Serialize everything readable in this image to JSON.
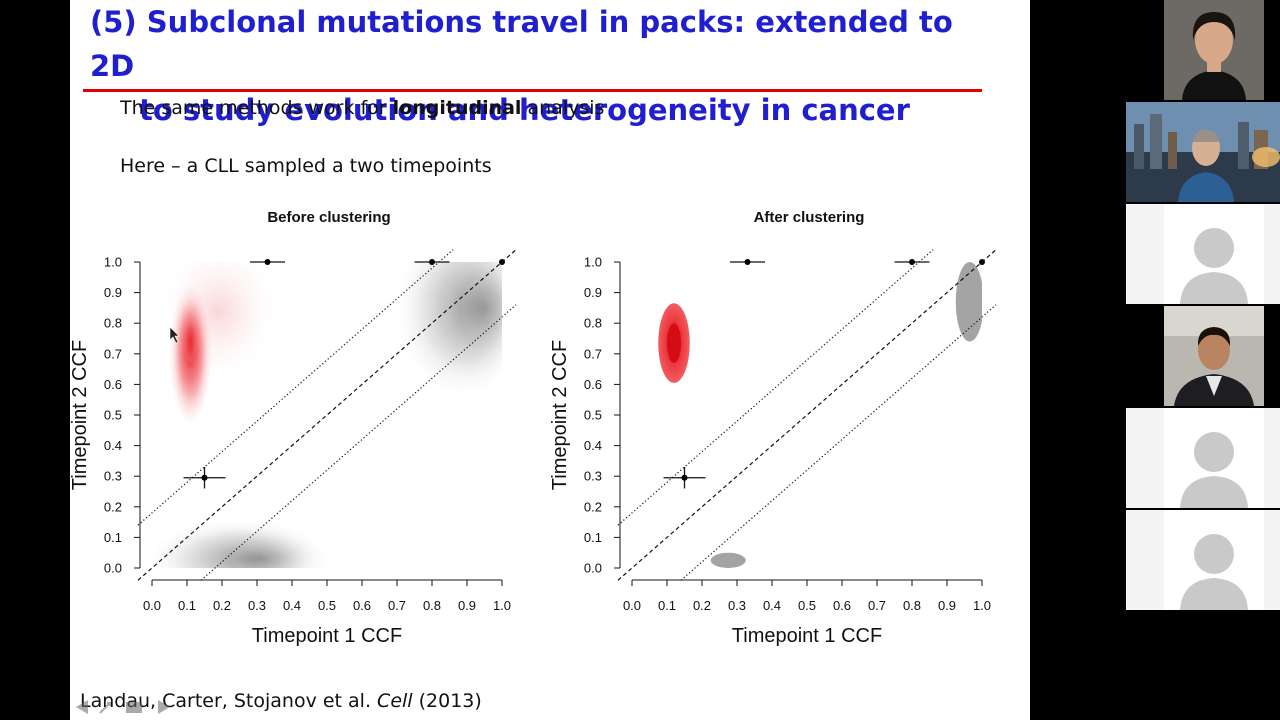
{
  "slide": {
    "title_line1": "(5) Subclonal mutations travel in packs: extended to 2D",
    "title_line2": "to study evolution and heterogeneity in cancer",
    "intro_prefix": "The same methods work for ",
    "intro_bold": "longitudinal",
    "intro_suffix": " analysis",
    "subtitle": "Here – a CLL sampled a two timepoints",
    "citation_authors": "Landau, Carter, Stojanov et al. ",
    "citation_journal": "Cell",
    "citation_year": " (2013)"
  },
  "chart_data": [
    {
      "type": "scatter",
      "title": "Before clustering",
      "xlabel": "Timepoint 1 CCF",
      "ylabel": "Timepoint 2 CCF",
      "xlim": [
        0,
        1
      ],
      "ylim": [
        0,
        1
      ],
      "xticks": [
        "0.0",
        "0.1",
        "0.2",
        "0.3",
        "0.4",
        "0.5",
        "0.6",
        "0.7",
        "0.8",
        "0.9",
        "1.0"
      ],
      "yticks": [
        "0.0",
        "0.1",
        "0.2",
        "0.3",
        "0.4",
        "0.5",
        "0.6",
        "0.7",
        "0.8",
        "0.9",
        "1.0"
      ],
      "points": [
        {
          "x": 0.33,
          "y": 1.0,
          "xerr_low": 0.28,
          "xerr_high": 0.38
        },
        {
          "x": 0.8,
          "y": 1.0,
          "xerr_low": 0.75,
          "xerr_high": 0.85
        },
        {
          "x": 1.0,
          "y": 1.0
        },
        {
          "x": 0.15,
          "y": 0.295,
          "xerr_low": 0.09,
          "xerr_high": 0.21,
          "yerr_low": 0.26,
          "yerr_high": 0.33
        }
      ],
      "reference_lines": [
        {
          "style": "dashed",
          "slope": 1,
          "intercept": 0
        },
        {
          "style": "dotted",
          "slope": 1,
          "intercept": 0.18
        },
        {
          "style": "dotted",
          "slope": 1,
          "intercept": -0.18
        }
      ],
      "densities": [
        {
          "color": "#e8262b",
          "cx": 0.11,
          "cy": 0.72,
          "sx": 0.045,
          "sy": 0.17
        },
        {
          "color": "#888888",
          "cx": 0.92,
          "cy": 0.85,
          "sx": 0.12,
          "sy": 0.18
        },
        {
          "color": "#888888",
          "cx": 0.28,
          "cy": 0.03,
          "sx": 0.16,
          "sy": 0.08
        }
      ]
    },
    {
      "type": "scatter",
      "title": "After clustering",
      "xlabel": "Timepoint 1 CCF",
      "ylabel": "Timepoint 2 CCF",
      "xlim": [
        0,
        1
      ],
      "ylim": [
        0,
        1
      ],
      "xticks": [
        "0.0",
        "0.1",
        "0.2",
        "0.3",
        "0.4",
        "0.5",
        "0.6",
        "0.7",
        "0.8",
        "0.9",
        "1.0"
      ],
      "yticks": [
        "0.0",
        "0.1",
        "0.2",
        "0.3",
        "0.4",
        "0.5",
        "0.6",
        "0.7",
        "0.8",
        "0.9",
        "1.0"
      ],
      "points": [
        {
          "x": 0.33,
          "y": 1.0,
          "xerr_low": 0.28,
          "xerr_high": 0.38
        },
        {
          "x": 0.8,
          "y": 1.0,
          "xerr_low": 0.75,
          "xerr_high": 0.85
        },
        {
          "x": 1.0,
          "y": 1.0
        },
        {
          "x": 0.15,
          "y": 0.295,
          "xerr_low": 0.09,
          "xerr_high": 0.21,
          "yerr_low": 0.26,
          "yerr_high": 0.33
        }
      ],
      "reference_lines": [
        {
          "style": "dashed",
          "slope": 1,
          "intercept": 0
        },
        {
          "style": "dotted",
          "slope": 1,
          "intercept": 0.18
        },
        {
          "style": "dotted",
          "slope": 1,
          "intercept": -0.18
        }
      ],
      "clusters": [
        {
          "color": "#e8262b",
          "cx": 0.12,
          "cy": 0.735,
          "rx": 0.045,
          "ry": 0.13
        },
        {
          "color": "#9a9a9a",
          "cx": 0.965,
          "cy": 0.87,
          "rx": 0.04,
          "ry": 0.13
        },
        {
          "color": "#999999",
          "cx": 0.275,
          "cy": 0.025,
          "rx": 0.05,
          "ry": 0.025
        }
      ]
    }
  ],
  "participants": [
    {
      "kind": "photo",
      "name": "participant-1"
    },
    {
      "kind": "photo",
      "name": "participant-2"
    },
    {
      "kind": "placeholder",
      "name": "participant-3"
    },
    {
      "kind": "photo",
      "name": "participant-4"
    },
    {
      "kind": "placeholder",
      "name": "participant-5"
    },
    {
      "kind": "placeholder",
      "name": "participant-6"
    }
  ]
}
